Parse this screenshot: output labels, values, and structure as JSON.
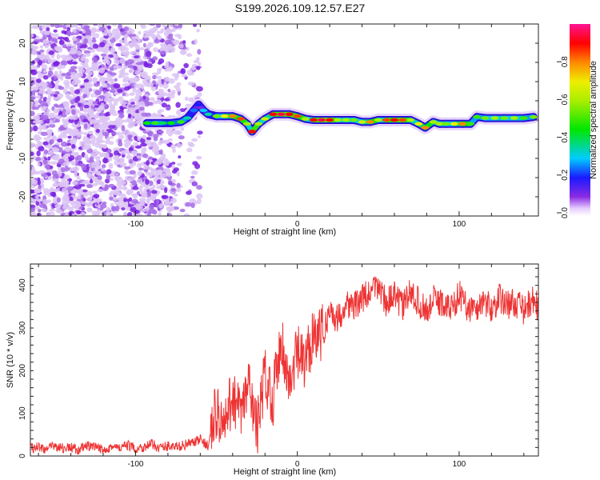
{
  "title": "S199.2026.109.12.57.E27",
  "chart_data": [
    {
      "type": "heatmap",
      "title": "S199.2026.109.12.57.E27",
      "xlabel": "Height of straight line (km)",
      "ylabel": "Frequency (Hz)",
      "xlim": [
        -165,
        149
      ],
      "ylim": [
        -25,
        25
      ],
      "xticks": [
        -100,
        0,
        100
      ],
      "xtick_labels": [
        "-100",
        "0",
        "100"
      ],
      "yticks": [
        -20,
        -10,
        0,
        10,
        20
      ],
      "ytick_labels": [
        "-20",
        "-10",
        "0",
        "10",
        "20"
      ],
      "noise_region_xmax": -65,
      "ridge": [
        [
          -93,
          -0.8,
          0.45
        ],
        [
          -88,
          -0.8,
          0.5
        ],
        [
          -83,
          -0.8,
          0.4
        ],
        [
          -78,
          -0.8,
          0.45
        ],
        [
          -72,
          -0.5,
          0.5
        ],
        [
          -68,
          0.5,
          0.35
        ],
        [
          -64,
          2.5,
          0.25
        ],
        [
          -61,
          4,
          0.2
        ],
        [
          -58,
          2.5,
          0.3
        ],
        [
          -55,
          1.5,
          0.35
        ],
        [
          -50,
          1,
          0.55
        ],
        [
          -45,
          1,
          0.7
        ],
        [
          -40,
          1,
          0.8
        ],
        [
          -35,
          0.3,
          0.85
        ],
        [
          -31,
          -1,
          0.6
        ],
        [
          -28,
          -3,
          0.9
        ],
        [
          -24,
          -1,
          0.6
        ],
        [
          -20,
          0.3,
          0.65
        ],
        [
          -15,
          1.5,
          0.9
        ],
        [
          -10,
          1.5,
          0.95
        ],
        [
          -5,
          1.5,
          0.9
        ],
        [
          0,
          1,
          0.85
        ],
        [
          5,
          0.3,
          0.6
        ],
        [
          10,
          0,
          0.9
        ],
        [
          15,
          0,
          0.95
        ],
        [
          20,
          0,
          0.9
        ],
        [
          25,
          0,
          0.6
        ],
        [
          30,
          0,
          0.6
        ],
        [
          35,
          0,
          0.55
        ],
        [
          40,
          -0.5,
          0.65
        ],
        [
          45,
          -0.5,
          0.8
        ],
        [
          50,
          0,
          0.6
        ],
        [
          55,
          0,
          0.85
        ],
        [
          60,
          0,
          0.9
        ],
        [
          65,
          0,
          0.85
        ],
        [
          70,
          0,
          0.6
        ],
        [
          75,
          -1,
          0.7
        ],
        [
          79,
          -2,
          0.8
        ],
        [
          84,
          -0.5,
          0.6
        ],
        [
          88,
          -1,
          0.6
        ],
        [
          92,
          -1,
          0.55
        ],
        [
          97,
          -1,
          0.7
        ],
        [
          102,
          -1,
          0.8
        ],
        [
          107,
          -1,
          0.5
        ],
        [
          111,
          0.8,
          0.5
        ],
        [
          116,
          0.5,
          0.55
        ],
        [
          122,
          0.5,
          0.6
        ],
        [
          128,
          0.5,
          0.55
        ],
        [
          134,
          0.5,
          0.6
        ],
        [
          140,
          0.5,
          0.5
        ],
        [
          146,
          0.8,
          0.55
        ]
      ],
      "colorbar": {
        "label": "Normalized spectral amplitude",
        "range": [
          0,
          1
        ],
        "ticks": [
          0.0,
          0.2,
          0.4,
          0.6,
          0.8
        ],
        "tick_labels": [
          "0.0",
          "0.2",
          "0.4",
          "0.6",
          "0.8"
        ]
      }
    },
    {
      "type": "line",
      "xlabel": "Height of straight line (km)",
      "ylabel": "SNR (10 * v/v)",
      "xlim": [
        -165,
        149
      ],
      "ylim": [
        0,
        450
      ],
      "xticks": [
        -100,
        0,
        100
      ],
      "xtick_labels": [
        "-100",
        "0",
        "100"
      ],
      "yticks": [
        0,
        100,
        200,
        300,
        400
      ],
      "ytick_labels": [
        "0",
        "100",
        "200",
        "300",
        "400"
      ],
      "color": "#ee3333",
      "series": [
        {
          "name": "SNR",
          "x": [
            -165,
            -160,
            -155,
            -150,
            -145,
            -140,
            -135,
            -130,
            -125,
            -120,
            -115,
            -110,
            -105,
            -100,
            -95,
            -90,
            -85,
            -80,
            -75,
            -70,
            -65,
            -60,
            -55,
            -50,
            -45,
            -40,
            -35,
            -30,
            -25,
            -20,
            -15,
            -10,
            -5,
            0,
            5,
            10,
            15,
            20,
            25,
            30,
            35,
            40,
            45,
            50,
            55,
            60,
            65,
            70,
            75,
            80,
            85,
            90,
            95,
            100,
            105,
            110,
            115,
            120,
            125,
            130,
            135,
            140,
            145,
            149
          ],
          "y": [
            18,
            22,
            15,
            25,
            18,
            20,
            14,
            24,
            19,
            16,
            22,
            18,
            25,
            17,
            21,
            28,
            19,
            24,
            20,
            26,
            30,
            38,
            25,
            110,
            60,
            150,
            90,
            170,
            60,
            190,
            140,
            280,
            160,
            240,
            210,
            300,
            280,
            340,
            320,
            360,
            350,
            370,
            380,
            400,
            360,
            375,
            350,
            385,
            360,
            340,
            370,
            355,
            345,
            380,
            350,
            340,
            365,
            345,
            370,
            355,
            360,
            340,
            365,
            350
          ]
        }
      ]
    }
  ]
}
